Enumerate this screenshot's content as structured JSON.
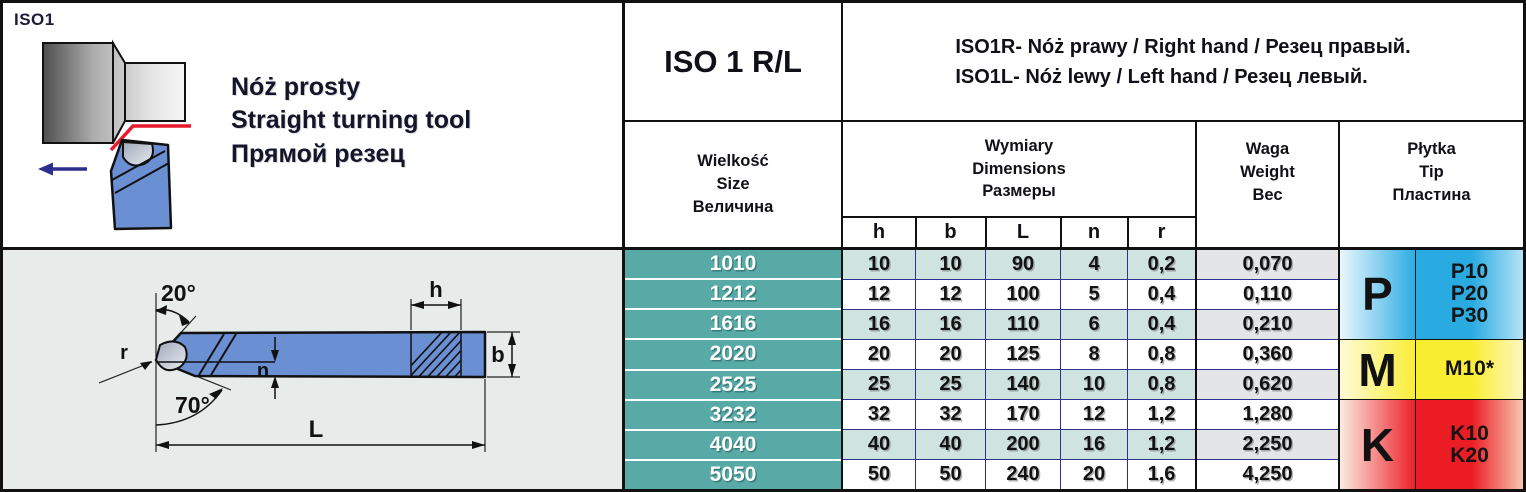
{
  "header": {
    "iso_label": "ISO1",
    "title_lines": [
      "Nóż prosty",
      "Straight turning tool",
      "Прямой резец"
    ],
    "model_code": "ISO 1 R/L",
    "variant_lines": [
      "ISO1R- Nóż prawy / Right hand / Резец правый.",
      "ISO1L- Nóż lewy / Left hand / Резец левый."
    ]
  },
  "table": {
    "size_header": [
      "Wielkość",
      "Size",
      "Величина"
    ],
    "dimensions_header": [
      "Wymiary",
      "Dimensions",
      "Размеры"
    ],
    "dimension_columns": [
      "h",
      "b",
      "L",
      "n",
      "r"
    ],
    "weight_header": [
      "Waga",
      "Weight",
      "Вес"
    ],
    "tip_header": [
      "Płytka",
      "Tip",
      "Пластина"
    ],
    "rows": [
      {
        "size": "1010",
        "h": "10",
        "b": "10",
        "L": "90",
        "n": "4",
        "r": "0,2",
        "weight": "0,070"
      },
      {
        "size": "1212",
        "h": "12",
        "b": "12",
        "L": "100",
        "n": "5",
        "r": "0,4",
        "weight": "0,110"
      },
      {
        "size": "1616",
        "h": "16",
        "b": "16",
        "L": "110",
        "n": "6",
        "r": "0,4",
        "weight": "0,210"
      },
      {
        "size": "2020",
        "h": "20",
        "b": "20",
        "L": "125",
        "n": "8",
        "r": "0,8",
        "weight": "0,360"
      },
      {
        "size": "2525",
        "h": "25",
        "b": "25",
        "L": "140",
        "n": "10",
        "r": "0,8",
        "weight": "0,620"
      },
      {
        "size": "3232",
        "h": "32",
        "b": "32",
        "L": "170",
        "n": "12",
        "r": "1,2",
        "weight": "1,280"
      },
      {
        "size": "4040",
        "h": "40",
        "b": "40",
        "L": "200",
        "n": "16",
        "r": "1,2",
        "weight": "2,250"
      },
      {
        "size": "5050",
        "h": "50",
        "b": "50",
        "L": "240",
        "n": "20",
        "r": "1,6",
        "weight": "4,250"
      }
    ],
    "tip_groups": [
      {
        "letter": "P",
        "grades": [
          "P10",
          "P20",
          "P30"
        ],
        "row_span": 3,
        "color": "#29abe2",
        "edge_left": "#e9f7fe",
        "edge_right": "#b5e3f7"
      },
      {
        "letter": "M",
        "grades": [
          "M10*"
        ],
        "row_span": 2,
        "color": "#f9ed32",
        "edge_left": "#fefbd8",
        "edge_right": "#fdf7c0"
      },
      {
        "letter": "K",
        "grades": [
          "K10",
          "K20"
        ],
        "row_span": 3,
        "color": "#ec1c24",
        "edge_left": "#fcebe2",
        "edge_right": "#f7c6b0"
      }
    ]
  },
  "drawing": {
    "dimension_labels": {
      "h": "h",
      "b": "b",
      "L": "L",
      "n": "n",
      "r": "r",
      "angle_rake": "20°",
      "angle_front": "70°"
    }
  },
  "colors": {
    "teal_column": "#58aaa6",
    "row_tint_green": "#cfe4df",
    "row_tint_grey": "#e3e5e7",
    "grid_navy": "#2e3192",
    "line_black": "#111111",
    "tool_blue": "#6b8fd3",
    "cut_line_red": "#e8192c",
    "arrow_navy": "#2b2f8f",
    "drawing_bg": "#e7ecea"
  }
}
